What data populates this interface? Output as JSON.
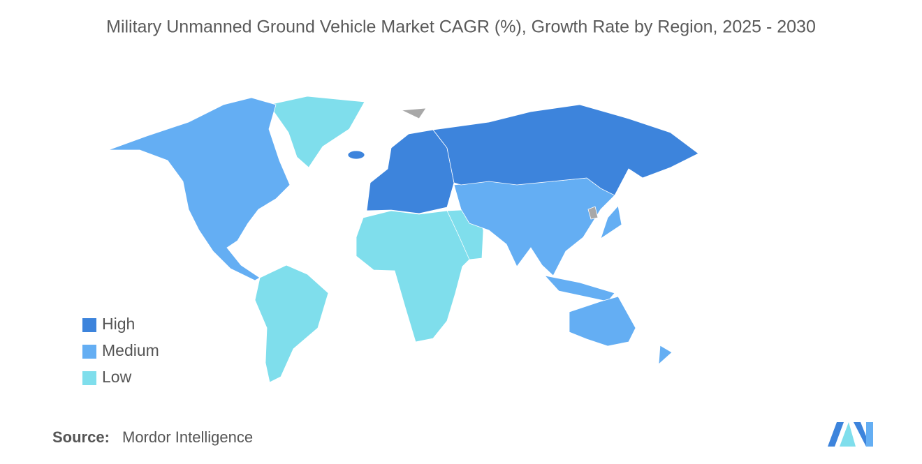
{
  "title": "Military Unmanned Ground Vehicle Market CAGR (%), Growth Rate by Region, 2025 - 2030",
  "legend": [
    {
      "label": "High",
      "color": "#3d84dc"
    },
    {
      "label": "Medium",
      "color": "#64aef3"
    },
    {
      "label": "Low",
      "color": "#7fdeec"
    }
  ],
  "no_data_color": "#a8a8a8",
  "source": {
    "label": "Source:",
    "text": "Mordor Intelligence"
  }
}
